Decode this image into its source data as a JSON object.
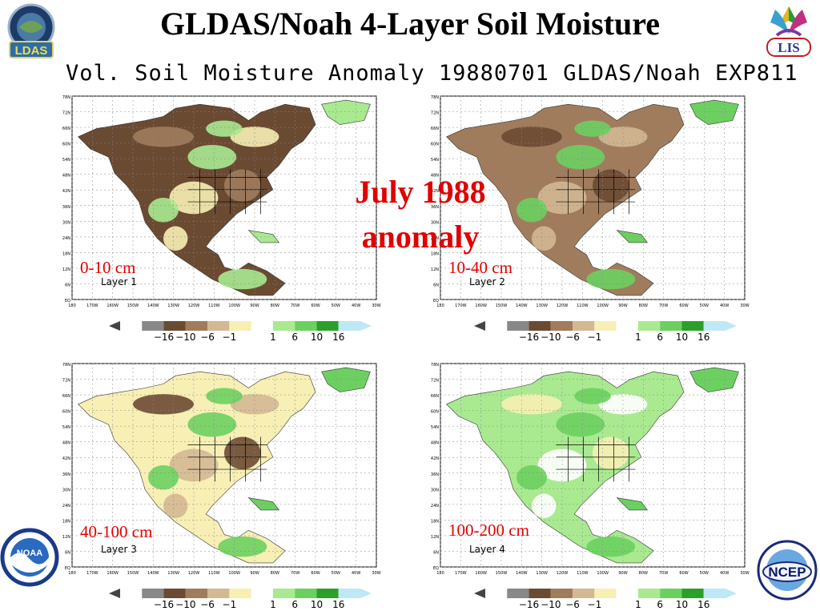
{
  "slide": {
    "title": "GLDAS/Noah 4-Layer Soil Moisture",
    "plot_title": "Vol. Soil Moisture Anomaly 19880701 GLDAS/Noah EXP811",
    "center_note": [
      "July 1988",
      "anomaly"
    ]
  },
  "logos": {
    "ldas": "LDAS",
    "lis": "LIS",
    "noaa": "NOAA",
    "ncep": "NCEP"
  },
  "colors": {
    "title_red": "#e00000",
    "dry_dark": "#6b4a32",
    "dry_mid": "#a07c5c",
    "dry_light": "#d3b894",
    "dry_pale": "#f7efb4",
    "wet_pale": "#a9ea90",
    "wet_mid": "#6cd060",
    "wet_dark": "#2aa02a",
    "wet_max": "#bfe8f6",
    "state_lines": "#000000",
    "grid": "#888888"
  },
  "colorbar": {
    "labels": [
      "−16",
      "−10",
      "−6",
      "−1",
      "1",
      "6",
      "10",
      "16"
    ]
  },
  "panels": [
    {
      "depth": "0-10 cm",
      "layer": "Layer 1"
    },
    {
      "depth": "10-40 cm",
      "layer": "Layer 2"
    },
    {
      "depth": "40-100 cm",
      "layer": "Layer 3"
    },
    {
      "depth": "100-200 cm",
      "layer": "Layer 4"
    }
  ],
  "axes": {
    "lat_ticks": [
      "78N",
      "72N",
      "66N",
      "60N",
      "54N",
      "48N",
      "42N",
      "36N",
      "30N",
      "24N",
      "18N",
      "12N",
      "6N",
      "EQ"
    ],
    "lon_ticks": [
      "180",
      "170W",
      "160W",
      "150W",
      "140W",
      "130W",
      "120W",
      "110W",
      "100W",
      "90W",
      "80W",
      "70W",
      "60W",
      "50W",
      "40W",
      "30W"
    ]
  }
}
